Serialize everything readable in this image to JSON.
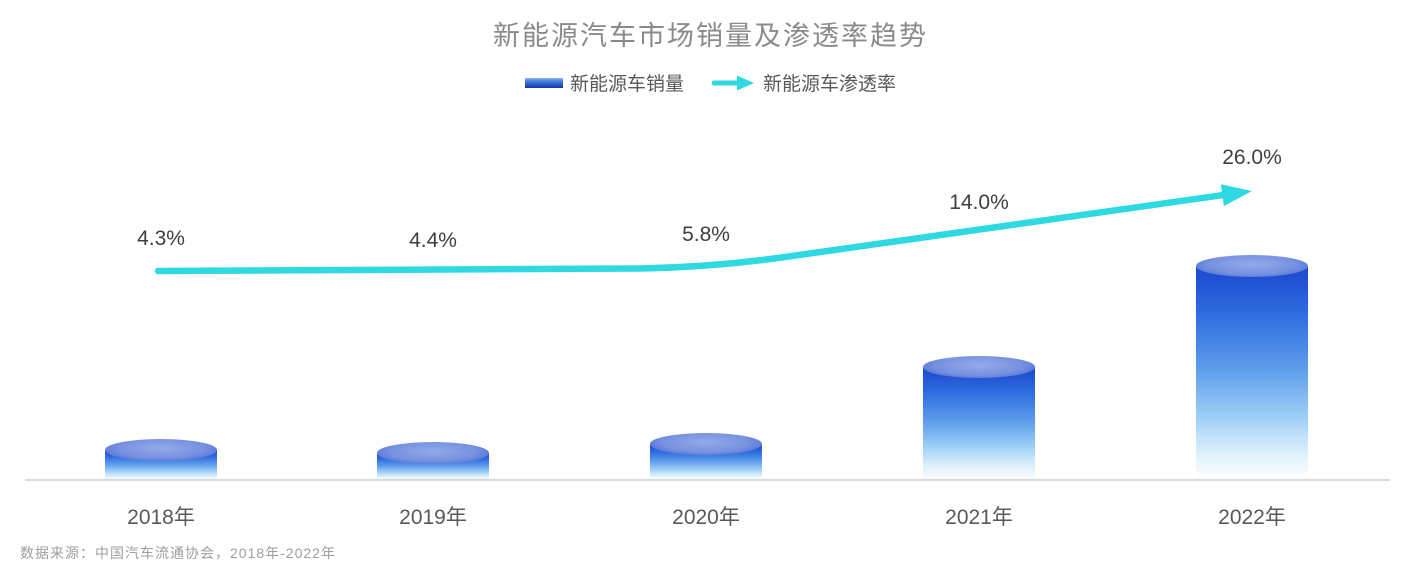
{
  "chart_data": {
    "type": "combo",
    "title": "新能源汽车市场销量及渗透率趋势",
    "categories": [
      "2018年",
      "2019年",
      "2020年",
      "2021年",
      "2022年"
    ],
    "series": [
      {
        "name": "新能源车销量",
        "type": "bar",
        "shape": "cylinder",
        "values_labeled": false,
        "relative_heights": [
          0.18,
          0.17,
          0.21,
          0.55,
          1.0
        ]
      },
      {
        "name": "新能源车渗透率",
        "type": "line",
        "marker": "arrow-end",
        "unit": "%",
        "values": [
          4.3,
          4.4,
          5.8,
          14.0,
          26.0
        ],
        "labels": [
          "4.3%",
          "4.4%",
          "5.8%",
          "14.0%",
          "26.0%"
        ]
      }
    ],
    "legend_position": "top-center",
    "grid": false,
    "y_axis_visible": false,
    "source_note": "数据来源：中国汽车流通协会，2018年-2022年",
    "colors": {
      "line": "#2ED9E2",
      "bar_dark": "#1B47CE",
      "bar_light": "#FFFFFF",
      "bar_top_ellipse": "#7791E0",
      "title_text": "#8A8A8A",
      "value_label_text": "#3F3F3F",
      "category_text": "#595959",
      "legend_text": "#595959",
      "axis_line": "#D9D9D9",
      "source_text": "#9E9E9E"
    }
  }
}
